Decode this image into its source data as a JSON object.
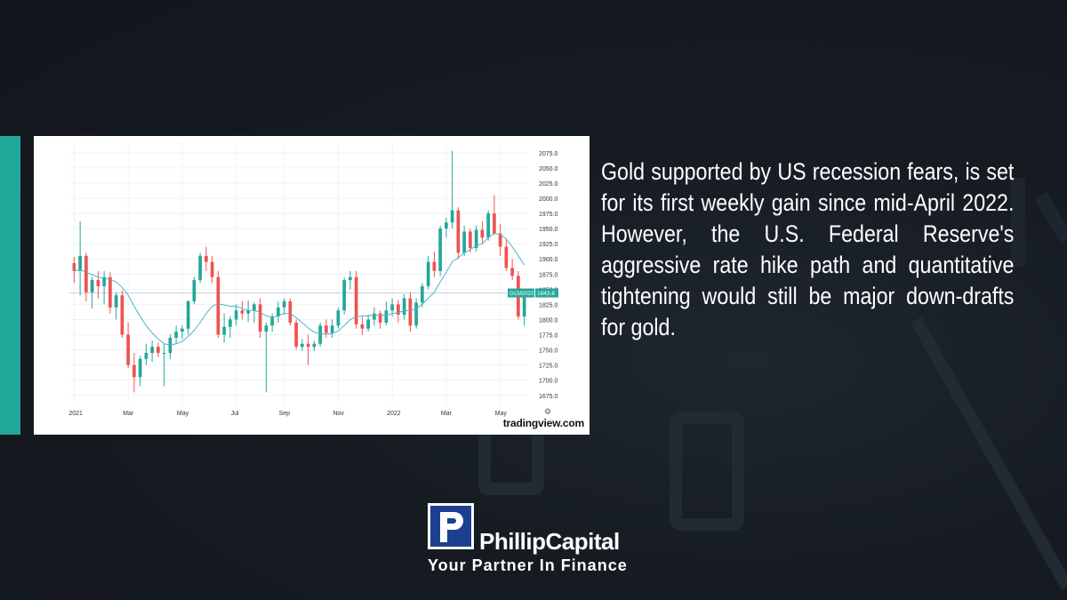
{
  "headline": "Gold supported by US recession fears, is set for its first weekly gain since mid-April 2022. However, the U.S. Federal Reserve's aggressive rate hike path and quantitative tightening would still be major down-drafts for gold.",
  "chart_source": "tradingview.com",
  "logo": {
    "name": "PhillipCapital",
    "tagline": "Your Partner In Finance"
  },
  "colors": {
    "accent": "#1fa89a",
    "up": "#26a69a",
    "down": "#ef5350",
    "ma": "#4fb3c8"
  },
  "chart_data": {
    "type": "candlestick",
    "symbol_label": "GCM2022",
    "last_price": "1843.8",
    "price_line": 1843.8,
    "ylim": [
      1660,
      2085
    ],
    "y_ticks": [
      1675.0,
      1700.0,
      1725.0,
      1750.0,
      1775.0,
      1800.0,
      1825.0,
      1850.0,
      1875.0,
      1900.0,
      1925.0,
      1950.0,
      1975.0,
      2000.0,
      2025.0,
      2050.0,
      2075.0
    ],
    "x_ticks": [
      {
        "label": "2021",
        "index": 0
      },
      {
        "label": "Mar",
        "index": 9
      },
      {
        "label": "May",
        "index": 18
      },
      {
        "label": "Jul",
        "index": 27
      },
      {
        "label": "Sep",
        "index": 35
      },
      {
        "label": "Nov",
        "index": 44
      },
      {
        "label": "2022",
        "index": 53
      },
      {
        "label": "Mar",
        "index": 62
      },
      {
        "label": "May",
        "index": 71
      }
    ],
    "candles": [
      [
        1893,
        1903,
        1860,
        1880
      ],
      [
        1880,
        1962,
        1840,
        1905
      ],
      [
        1905,
        1910,
        1830,
        1845
      ],
      [
        1845,
        1870,
        1818,
        1865
      ],
      [
        1865,
        1880,
        1835,
        1855
      ],
      [
        1855,
        1880,
        1825,
        1870
      ],
      [
        1870,
        1878,
        1810,
        1820
      ],
      [
        1820,
        1845,
        1800,
        1840
      ],
      [
        1840,
        1848,
        1770,
        1775
      ],
      [
        1775,
        1795,
        1720,
        1725
      ],
      [
        1725,
        1745,
        1680,
        1705
      ],
      [
        1705,
        1740,
        1690,
        1735
      ],
      [
        1735,
        1760,
        1725,
        1745
      ],
      [
        1745,
        1765,
        1730,
        1755
      ],
      [
        1755,
        1762,
        1738,
        1745
      ],
      [
        1745,
        1760,
        1690,
        1745
      ],
      [
        1745,
        1775,
        1735,
        1770
      ],
      [
        1770,
        1790,
        1760,
        1780
      ],
      [
        1780,
        1790,
        1768,
        1785
      ],
      [
        1785,
        1832,
        1775,
        1830
      ],
      [
        1830,
        1870,
        1825,
        1865
      ],
      [
        1865,
        1910,
        1860,
        1905
      ],
      [
        1905,
        1920,
        1880,
        1895
      ],
      [
        1895,
        1905,
        1860,
        1870
      ],
      [
        1870,
        1880,
        1770,
        1775
      ],
      [
        1775,
        1810,
        1762,
        1788
      ],
      [
        1788,
        1805,
        1770,
        1800
      ],
      [
        1800,
        1825,
        1790,
        1815
      ],
      [
        1815,
        1830,
        1800,
        1810
      ],
      [
        1810,
        1832,
        1796,
        1815
      ],
      [
        1815,
        1828,
        1795,
        1825
      ],
      [
        1825,
        1835,
        1770,
        1780
      ],
      [
        1780,
        1795,
        1680,
        1790
      ],
      [
        1790,
        1810,
        1780,
        1805
      ],
      [
        1805,
        1830,
        1795,
        1820
      ],
      [
        1820,
        1835,
        1808,
        1830
      ],
      [
        1830,
        1835,
        1790,
        1795
      ],
      [
        1795,
        1800,
        1750,
        1755
      ],
      [
        1755,
        1768,
        1748,
        1760
      ],
      [
        1760,
        1775,
        1725,
        1755
      ],
      [
        1755,
        1765,
        1748,
        1760
      ],
      [
        1760,
        1795,
        1755,
        1790
      ],
      [
        1790,
        1800,
        1770,
        1778
      ],
      [
        1778,
        1800,
        1770,
        1790
      ],
      [
        1790,
        1820,
        1785,
        1815
      ],
      [
        1815,
        1870,
        1808,
        1865
      ],
      [
        1865,
        1880,
        1850,
        1870
      ],
      [
        1870,
        1880,
        1785,
        1792
      ],
      [
        1792,
        1805,
        1775,
        1785
      ],
      [
        1785,
        1808,
        1780,
        1800
      ],
      [
        1800,
        1820,
        1790,
        1810
      ],
      [
        1810,
        1815,
        1785,
        1795
      ],
      [
        1795,
        1830,
        1790,
        1815
      ],
      [
        1815,
        1835,
        1805,
        1825
      ],
      [
        1825,
        1832,
        1795,
        1808
      ],
      [
        1808,
        1842,
        1800,
        1835
      ],
      [
        1835,
        1845,
        1780,
        1790
      ],
      [
        1790,
        1835,
        1785,
        1828
      ],
      [
        1828,
        1860,
        1820,
        1855
      ],
      [
        1855,
        1905,
        1850,
        1895
      ],
      [
        1895,
        1912,
        1870,
        1880
      ],
      [
        1880,
        1955,
        1872,
        1950
      ],
      [
        1950,
        1968,
        1935,
        1960
      ],
      [
        1960,
        2078,
        1950,
        1980
      ],
      [
        1980,
        1985,
        1900,
        1910
      ],
      [
        1910,
        1955,
        1905,
        1945
      ],
      [
        1945,
        1950,
        1910,
        1918
      ],
      [
        1918,
        1955,
        1912,
        1948
      ],
      [
        1948,
        1962,
        1925,
        1935
      ],
      [
        1935,
        1980,
        1930,
        1975
      ],
      [
        1975,
        2005,
        1940,
        1942
      ],
      [
        1942,
        1958,
        1905,
        1920
      ],
      [
        1920,
        1932,
        1880,
        1885
      ],
      [
        1885,
        1900,
        1865,
        1872
      ],
      [
        1872,
        1880,
        1800,
        1805
      ],
      [
        1805,
        1850,
        1790,
        1844
      ]
    ],
    "ma": [
      1880,
      1882,
      1878,
      1874,
      1870,
      1868,
      1866,
      1862,
      1853,
      1840,
      1822,
      1805,
      1790,
      1778,
      1768,
      1760,
      1758,
      1760,
      1764,
      1772,
      1782,
      1795,
      1810,
      1822,
      1826,
      1824,
      1822,
      1822,
      1818,
      1815,
      1815,
      1812,
      1806,
      1804,
      1806,
      1810,
      1810,
      1803,
      1795,
      1786,
      1779,
      1777,
      1776,
      1777,
      1781,
      1790,
      1800,
      1805,
      1806,
      1806,
      1808,
      1807,
      1807,
      1810,
      1811,
      1815,
      1814,
      1818,
      1825,
      1835,
      1845,
      1862,
      1878,
      1895,
      1902,
      1910,
      1915,
      1922,
      1925,
      1935,
      1942,
      1940,
      1933,
      1920,
      1905,
      1890
    ]
  }
}
